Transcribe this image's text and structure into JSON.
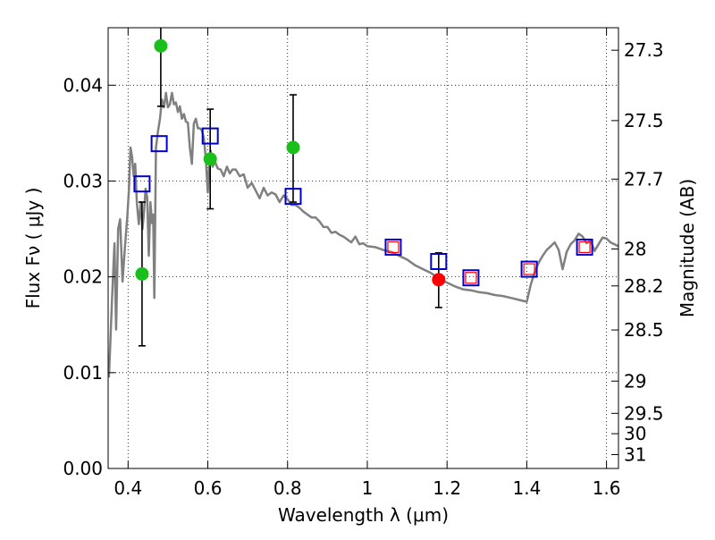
{
  "chart_data": {
    "type": "scatter",
    "xlabel": "Wavelength  λ (μm)",
    "ylabel": "Flux  Fν  ( μJy )",
    "ylabel_right": "Magnitude (AB)",
    "xlim": [
      0.35,
      1.63
    ],
    "ylim": [
      0.0,
      0.046
    ],
    "grid": true,
    "grid_style": "dotted",
    "x_ticks": [
      {
        "value": 0.4,
        "label": "0.4"
      },
      {
        "value": 0.6,
        "label": "0.6"
      },
      {
        "value": 0.8,
        "label": "0.8"
      },
      {
        "value": 1.0,
        "label": "1"
      },
      {
        "value": 1.2,
        "label": "1.2"
      },
      {
        "value": 1.4,
        "label": "1.4"
      },
      {
        "value": 1.6,
        "label": "1.6"
      }
    ],
    "y_ticks": [
      {
        "value": 0.0,
        "label": "0.00"
      },
      {
        "value": 0.01,
        "label": "0.01"
      },
      {
        "value": 0.02,
        "label": "0.02"
      },
      {
        "value": 0.03,
        "label": "0.03"
      },
      {
        "value": 0.04,
        "label": "0.04"
      }
    ],
    "right_ticks": [
      {
        "value": 27.3,
        "label": "27.3"
      },
      {
        "value": 27.5,
        "label": "27.5"
      },
      {
        "value": 27.7,
        "label": "27.7"
      },
      {
        "value": 28.0,
        "label": "28"
      },
      {
        "value": 28.2,
        "label": "28.2"
      },
      {
        "value": 28.5,
        "label": "28.5"
      },
      {
        "value": 29.0,
        "label": "29"
      },
      {
        "value": 29.5,
        "label": "29.5"
      },
      {
        "value": 30.0,
        "label": "30"
      },
      {
        "value": 31.0,
        "label": "31"
      }
    ],
    "series": [
      {
        "kind": "line",
        "color": "#808080",
        "points": [
          [
            0.352,
            0.0095
          ],
          [
            0.36,
            0.018
          ],
          [
            0.366,
            0.0235
          ],
          [
            0.37,
            0.0145
          ],
          [
            0.375,
            0.025
          ],
          [
            0.38,
            0.026
          ],
          [
            0.386,
            0.0195
          ],
          [
            0.392,
            0.023
          ],
          [
            0.398,
            0.0262
          ],
          [
            0.402,
            0.029
          ],
          [
            0.406,
            0.0335
          ],
          [
            0.41,
            0.0325
          ],
          [
            0.414,
            0.0305
          ],
          [
            0.418,
            0.0318
          ],
          [
            0.422,
            0.0278
          ],
          [
            0.427,
            0.0255
          ],
          [
            0.432,
            0.0278
          ],
          [
            0.436,
            0.025
          ],
          [
            0.44,
            0.0267
          ],
          [
            0.444,
            0.0292
          ],
          [
            0.448,
            0.0283
          ],
          [
            0.452,
            0.0222
          ],
          [
            0.456,
            0.0278
          ],
          [
            0.46,
            0.0256
          ],
          [
            0.463,
            0.0265
          ],
          [
            0.466,
            0.0178
          ],
          [
            0.47,
            0.0335
          ],
          [
            0.475,
            0.0352
          ],
          [
            0.48,
            0.0365
          ],
          [
            0.485,
            0.0385
          ],
          [
            0.49,
            0.0377
          ],
          [
            0.495,
            0.0392
          ],
          [
            0.5,
            0.0377
          ],
          [
            0.505,
            0.038
          ],
          [
            0.51,
            0.0392
          ],
          [
            0.515,
            0.038
          ],
          [
            0.52,
            0.0382
          ],
          [
            0.525,
            0.0372
          ],
          [
            0.53,
            0.0378
          ],
          [
            0.535,
            0.0365
          ],
          [
            0.54,
            0.037
          ],
          [
            0.545,
            0.0362
          ],
          [
            0.55,
            0.0361
          ],
          [
            0.555,
            0.0335
          ],
          [
            0.56,
            0.0318
          ],
          [
            0.565,
            0.036
          ],
          [
            0.57,
            0.0365
          ],
          [
            0.575,
            0.0355
          ],
          [
            0.58,
            0.0355
          ],
          [
            0.585,
            0.0353
          ],
          [
            0.59,
            0.0345
          ],
          [
            0.595,
            0.0323
          ],
          [
            0.6,
            0.0288
          ],
          [
            0.603,
            0.0312
          ],
          [
            0.607,
            0.0332
          ],
          [
            0.612,
            0.0315
          ],
          [
            0.618,
            0.032
          ],
          [
            0.625,
            0.0313
          ],
          [
            0.632,
            0.0312
          ],
          [
            0.64,
            0.0305
          ],
          [
            0.648,
            0.0315
          ],
          [
            0.655,
            0.0308
          ],
          [
            0.662,
            0.0312
          ],
          [
            0.67,
            0.0312
          ],
          [
            0.68,
            0.0305
          ],
          [
            0.69,
            0.0307
          ],
          [
            0.7,
            0.0293
          ],
          [
            0.71,
            0.0298
          ],
          [
            0.72,
            0.029
          ],
          [
            0.73,
            0.0282
          ],
          [
            0.74,
            0.0293
          ],
          [
            0.75,
            0.0285
          ],
          [
            0.76,
            0.0288
          ],
          [
            0.77,
            0.0286
          ],
          [
            0.78,
            0.0278
          ],
          [
            0.79,
            0.0285
          ],
          [
            0.8,
            0.0281
          ],
          [
            0.81,
            0.0275
          ],
          [
            0.82,
            0.0275
          ],
          [
            0.83,
            0.0272
          ],
          [
            0.84,
            0.0268
          ],
          [
            0.85,
            0.0265
          ],
          [
            0.86,
            0.0262
          ],
          [
            0.87,
            0.0262
          ],
          [
            0.88,
            0.0258
          ],
          [
            0.89,
            0.0252
          ],
          [
            0.9,
            0.0252
          ],
          [
            0.91,
            0.0246
          ],
          [
            0.92,
            0.0247
          ],
          [
            0.93,
            0.0244
          ],
          [
            0.94,
            0.0242
          ],
          [
            0.95,
            0.0239
          ],
          [
            0.96,
            0.0236
          ],
          [
            0.97,
            0.0242
          ],
          [
            0.98,
            0.0234
          ],
          [
            0.99,
            0.0235
          ],
          [
            1.0,
            0.0232
          ],
          [
            1.02,
            0.0231
          ],
          [
            1.04,
            0.0228
          ],
          [
            1.06,
            0.0226
          ],
          [
            1.08,
            0.0222
          ],
          [
            1.1,
            0.0218
          ],
          [
            1.12,
            0.0212
          ],
          [
            1.14,
            0.0208
          ],
          [
            1.16,
            0.0204
          ],
          [
            1.18,
            0.0198
          ],
          [
            1.2,
            0.0194
          ],
          [
            1.22,
            0.019
          ],
          [
            1.24,
            0.0187
          ],
          [
            1.26,
            0.0186
          ],
          [
            1.28,
            0.0184
          ],
          [
            1.3,
            0.0183
          ],
          [
            1.32,
            0.0181
          ],
          [
            1.34,
            0.018
          ],
          [
            1.36,
            0.0178
          ],
          [
            1.38,
            0.0176
          ],
          [
            1.4,
            0.0174
          ],
          [
            1.41,
            0.0192
          ],
          [
            1.42,
            0.0205
          ],
          [
            1.43,
            0.0215
          ],
          [
            1.44,
            0.0222
          ],
          [
            1.45,
            0.0228
          ],
          [
            1.46,
            0.0232
          ],
          [
            1.47,
            0.0236
          ],
          [
            1.48,
            0.0228
          ],
          [
            1.49,
            0.0208
          ],
          [
            1.5,
            0.0226
          ],
          [
            1.51,
            0.0234
          ],
          [
            1.52,
            0.0238
          ],
          [
            1.53,
            0.0245
          ],
          [
            1.54,
            0.0242
          ],
          [
            1.55,
            0.0235
          ],
          [
            1.56,
            0.0238
          ],
          [
            1.57,
            0.0227
          ],
          [
            1.58,
            0.0234
          ],
          [
            1.59,
            0.0241
          ],
          [
            1.6,
            0.024
          ],
          [
            1.61,
            0.0236
          ],
          [
            1.62,
            0.0234
          ],
          [
            1.63,
            0.0232
          ]
        ]
      },
      {
        "kind": "points",
        "marker": "circle",
        "color": "#1bbf1b",
        "points": [
          {
            "x": 0.435,
            "y": 0.0203,
            "yerr_low": 0.0128,
            "yerr_high": 0.0278
          },
          {
            "x": 0.482,
            "y": 0.0441,
            "yerr_low": 0.0378,
            "yerr_high": 0.046
          },
          {
            "x": 0.606,
            "y": 0.0323,
            "yerr_low": 0.0271,
            "yerr_high": 0.0375
          },
          {
            "x": 0.814,
            "y": 0.0335,
            "yerr_low": 0.0278,
            "yerr_high": 0.039
          }
        ]
      },
      {
        "kind": "points",
        "marker": "circle",
        "color": "#ff0000",
        "points": [
          {
            "x": 1.179,
            "y": 0.0197,
            "yerr_low": 0.0168,
            "yerr_high": 0.0225
          }
        ]
      },
      {
        "kind": "points",
        "marker": "square-open",
        "color": "#0000cc",
        "points": [
          {
            "x": 0.435,
            "y": 0.0297
          },
          {
            "x": 0.478,
            "y": 0.0339
          },
          {
            "x": 0.606,
            "y": 0.0347
          },
          {
            "x": 0.814,
            "y": 0.0284
          },
          {
            "x": 1.065,
            "y": 0.0231
          },
          {
            "x": 1.179,
            "y": 0.0216
          },
          {
            "x": 1.26,
            "y": 0.0199
          },
          {
            "x": 1.406,
            "y": 0.0208
          },
          {
            "x": 1.545,
            "y": 0.0231
          }
        ]
      },
      {
        "kind": "points",
        "marker": "square-open-small",
        "color": "#ff0000",
        "points": [
          {
            "x": 1.065,
            "y": 0.0231
          },
          {
            "x": 1.26,
            "y": 0.0199
          },
          {
            "x": 1.406,
            "y": 0.0208
          },
          {
            "x": 1.545,
            "y": 0.0231
          }
        ]
      }
    ]
  }
}
